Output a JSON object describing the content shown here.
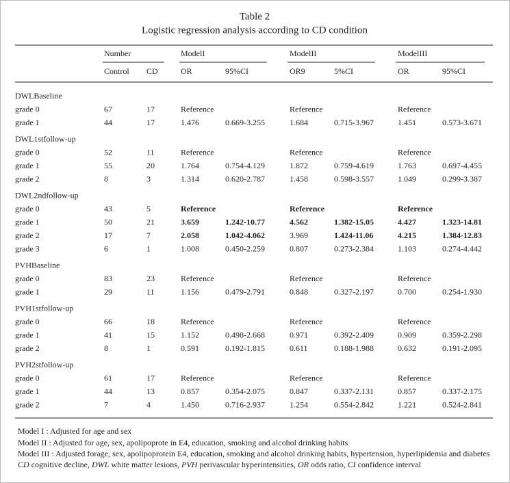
{
  "table": {
    "title": "Table 2",
    "subtitle": "Logistic regression analysis according to CD condition",
    "group_headers": [
      "Number",
      "ModelI",
      "ModelII",
      "ModelIII"
    ],
    "column_headers": [
      "Control",
      "CD",
      "OR",
      "95%CI",
      "OR9",
      "5%CI",
      "OR",
      "95%CI"
    ],
    "sections": [
      {
        "name": "DWLBaseline",
        "rows": [
          {
            "cells": [
              "grade 0",
              "67",
              "17",
              "Reference",
              null,
              "Reference",
              null,
              "Reference",
              null
            ]
          },
          {
            "cells": [
              "grade 1",
              "44",
              "17",
              "1.476",
              "0.669-3.255",
              "1.684",
              "0.715-3.967",
              "1.451",
              "0.573-3.671"
            ]
          }
        ]
      },
      {
        "name": "DWL1stfollow-up",
        "rows": [
          {
            "cells": [
              "grade 0",
              "52",
              "11",
              "Reference",
              null,
              "Reference",
              null,
              "Reference",
              null
            ]
          },
          {
            "cells": [
              "grade 1",
              "55",
              "20",
              "1.764",
              "0.754-4.129",
              "1.872",
              "0.759-4.619",
              "1.763",
              "0.697-4.455"
            ]
          },
          {
            "cells": [
              "grade 2",
              "8",
              "3",
              "1.314",
              "0.620-2.787",
              "1.458",
              "0.598-3.557",
              "1.049",
              "0.299-3.387"
            ]
          }
        ]
      },
      {
        "name": "DWL2ndfollow-up",
        "rows": [
          {
            "cells": [
              "grade 0",
              "43",
              "5",
              "Reference",
              null,
              "Reference",
              null,
              "Reference",
              null
            ],
            "bold": [
              3,
              5,
              7
            ]
          },
          {
            "cells": [
              "grade 1",
              "50",
              "21",
              "3.659",
              "1.242-10.77",
              "4.562",
              "1.382-15.05",
              "4.427",
              "1.323-14.81"
            ],
            "bold": [
              3,
              4,
              5,
              6,
              7,
              8
            ]
          },
          {
            "cells": [
              "grade 2",
              "17",
              "7",
              "2.058",
              "1.042-4.062",
              "3.969",
              "1.424-11.06",
              "4.215",
              "1.384-12.83"
            ],
            "bold": [
              3,
              4,
              6,
              7,
              8
            ]
          },
          {
            "cells": [
              "grade 3",
              "6",
              "1",
              "1.008",
              "0.450-2.259",
              "0.807",
              "0.273-2.384",
              "1.103",
              "0.274-4.442"
            ]
          }
        ]
      },
      {
        "name": "PVHBaseline",
        "rows": [
          {
            "cells": [
              "grade 0",
              "83",
              "23",
              "Reference",
              null,
              "Reference",
              null,
              "Reference",
              null
            ]
          },
          {
            "cells": [
              "grade 1",
              "29",
              "11",
              "1.156",
              "0.479-2.791",
              "0.848",
              "0.327-2.197",
              "0.700",
              "0.254-1.930"
            ]
          }
        ]
      },
      {
        "name": "PVH1stfollow-up",
        "rows": [
          {
            "cells": [
              "grade 0",
              "66",
              "18",
              "Reference",
              null,
              "Reference",
              null,
              "Reference",
              null
            ]
          },
          {
            "cells": [
              "grade 1",
              "41",
              "15",
              "1.152",
              "0.498-2.668",
              "0.971",
              "0.392-2.409",
              "0.909",
              "0.359-2.298"
            ]
          },
          {
            "cells": [
              "grade 2",
              "8",
              "1",
              "0.591",
              "0.192-1.815",
              "0.611",
              "0.188-1.988",
              "0.632",
              "0.191-2.095"
            ]
          }
        ]
      },
      {
        "name": "PVH2stfollow-up",
        "rows": [
          {
            "cells": [
              "grade 0",
              "61",
              "17",
              "Reference",
              null,
              "Reference",
              null,
              "Reference",
              null
            ]
          },
          {
            "cells": [
              "grade 1",
              "44",
              "13",
              "0.857",
              "0.354-2.075",
              "0.847",
              "0.337-2.131",
              "0.857",
              "0.337-2.175"
            ]
          },
          {
            "cells": [
              "grade 2",
              "7",
              "4",
              "1.450",
              "0.716-2.937",
              "1.254",
              "0.554-2.842",
              "1.221",
              "0.524-2.841"
            ]
          }
        ]
      }
    ],
    "footnotes": [
      [
        {
          "text": "Model I : Adjusted for age and sex"
        }
      ],
      [
        {
          "text": "Model II : Adjusted for age, sex, apolipoprote in E4, education, smoking and alcohol drinking habits"
        }
      ],
      [
        {
          "text": "Model III : Adjusted forage, sex, apolipoprotein E4, education, smoking and alcohol drinking habits, hypertension, hyperlipidemia and diabetes"
        }
      ],
      [
        {
          "text": "CD",
          "italic": true
        },
        {
          "text": " cognitive decline, "
        },
        {
          "text": "DWL",
          "italic": true
        },
        {
          "text": " white matter lesions, "
        },
        {
          "text": "PVH",
          "italic": true
        },
        {
          "text": " perivascular hyperintensities, "
        },
        {
          "text": "OR",
          "italic": true
        },
        {
          "text": " odds ratio, "
        },
        {
          "text": "CI",
          "italic": true
        },
        {
          "text": " confidence interval"
        }
      ]
    ]
  }
}
